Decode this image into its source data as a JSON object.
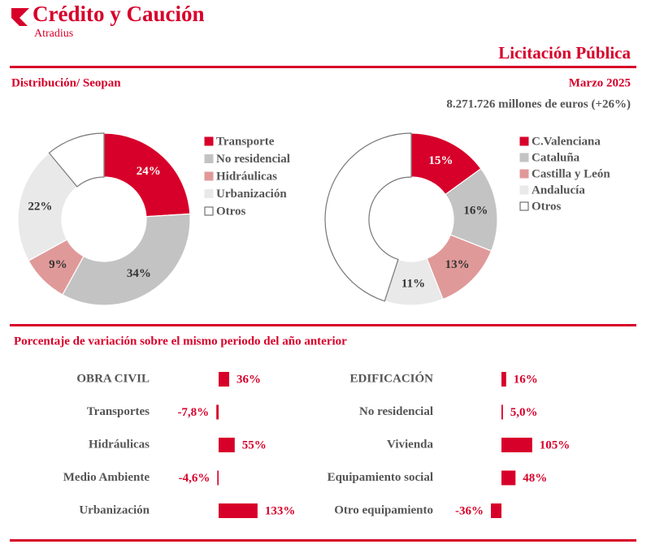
{
  "header": {
    "brand": "Crédito y Caución",
    "sub_brand": "Atradius",
    "title": "Licitación Pública",
    "section": "Distribución/ Seopan",
    "date": "Marzo 2025",
    "total": "8.271.726 millones de euros (+26%)",
    "variation_title": "Porcentaje de variación sobre el mismo periodo del año anterior"
  },
  "chart_data": [
    {
      "type": "pie",
      "categories": [
        "Transporte",
        "No residencial",
        "Hidráulicas",
        "Urbanización",
        "Otros"
      ],
      "values": [
        24,
        34,
        9,
        22,
        11
      ],
      "value_labels": [
        "24%",
        "34%",
        "9%",
        "22%",
        null
      ],
      "colors": [
        "#d7002a",
        "#c3c3c3",
        "#e09999",
        "#e9e9e9",
        "#ffffff"
      ]
    },
    {
      "type": "pie",
      "categories": [
        "C.Valenciana",
        "Cataluña",
        "Castilla y León",
        "Andalucía",
        "Otros"
      ],
      "values": [
        15,
        16,
        13,
        11,
        45
      ],
      "value_labels": [
        "15%",
        "16%",
        "13%",
        "11%",
        null
      ],
      "colors": [
        "#d7002a",
        "#c3c3c3",
        "#e09999",
        "#e9e9e9",
        "#ffffff"
      ]
    },
    {
      "type": "bar",
      "categories": [
        "OBRA CIVIL",
        "Transportes",
        "Hidráulicas",
        "Medio Ambiente",
        "Urbanización"
      ],
      "values": [
        36,
        -7.8,
        55,
        -4.6,
        133
      ],
      "value_labels": [
        "36%",
        "-7,8%",
        "55%",
        "-4,6%",
        "133%"
      ],
      "color": "#d7002a"
    },
    {
      "type": "bar",
      "categories": [
        "EDIFICACIÓN",
        "No residencial",
        "Vivienda",
        "Equipamiento social",
        "Otro equipamiento"
      ],
      "values": [
        16,
        5.0,
        105,
        48,
        -36
      ],
      "value_labels": [
        "16%",
        "5,0%",
        "105%",
        "48%",
        "-36%"
      ],
      "color": "#d7002a"
    }
  ]
}
